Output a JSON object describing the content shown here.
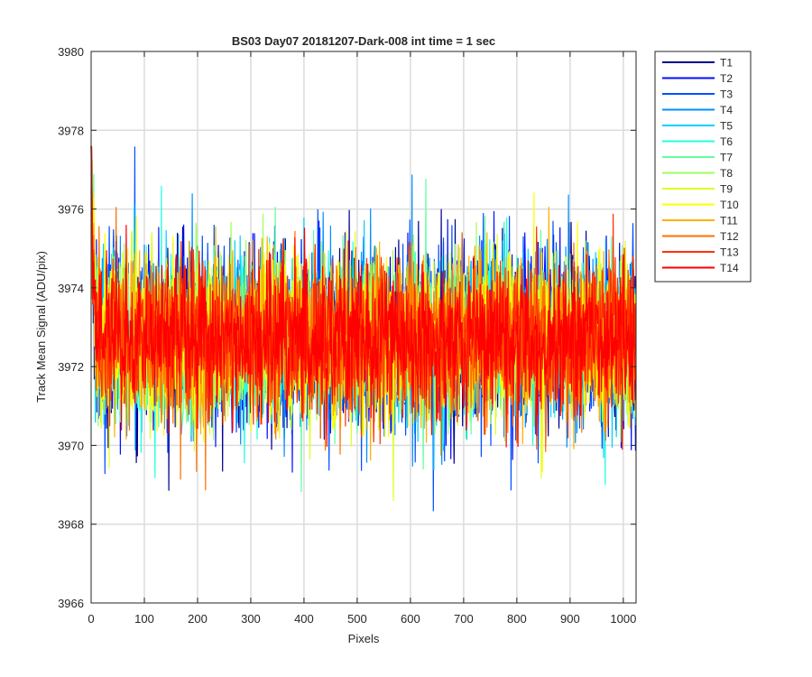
{
  "chart_data": {
    "type": "line",
    "title": "BS03 Day07 20181207-Dark-008 int time = 1 sec",
    "xlabel": "Pixels",
    "ylabel": "Track Mean Signal (ADU/pix)",
    "xlim": [
      0,
      1024
    ],
    "ylim": [
      3966,
      3980
    ],
    "xticks": [
      0,
      100,
      200,
      300,
      400,
      500,
      600,
      700,
      800,
      900,
      1000
    ],
    "yticks": [
      3966,
      3968,
      3970,
      3972,
      3974,
      3976,
      3978,
      3980
    ],
    "grid": true,
    "legend_position": "outside-top-right",
    "num_points": 1024,
    "series_summary": "noisy dark-frame tracks centred near 3972.7 ADU, start near 3977-3978 at pixel 0 and settle within ~10 pixels; typical spread 3970-3976 with occasional spikes",
    "series": [
      {
        "name": "T1",
        "color": "#00008f",
        "start": 3978.6,
        "mean": 3972.7,
        "spread": 1.1
      },
      {
        "name": "T2",
        "color": "#0010ff",
        "start": 3978.3,
        "mean": 3972.7,
        "spread": 1.1
      },
      {
        "name": "T3",
        "color": "#0050ff",
        "start": 3978.0,
        "mean": 3972.7,
        "spread": 1.1
      },
      {
        "name": "T4",
        "color": "#0090ff",
        "start": 3977.8,
        "mean": 3972.7,
        "spread": 1.1
      },
      {
        "name": "T5",
        "color": "#00d0ff",
        "start": 3977.6,
        "mean": 3972.7,
        "spread": 1.0
      },
      {
        "name": "T6",
        "color": "#20ffdf",
        "start": 3977.9,
        "mean": 3972.7,
        "spread": 1.0
      },
      {
        "name": "T7",
        "color": "#60ff9f",
        "start": 3977.5,
        "mean": 3972.7,
        "spread": 1.0
      },
      {
        "name": "T8",
        "color": "#9fff60",
        "start": 3977.7,
        "mean": 3972.7,
        "spread": 1.0
      },
      {
        "name": "T9",
        "color": "#dfff20",
        "start": 3978.1,
        "mean": 3972.7,
        "spread": 1.0
      },
      {
        "name": "T10",
        "color": "#ffff00",
        "start": 3977.9,
        "mean": 3972.7,
        "spread": 1.0
      },
      {
        "name": "T11",
        "color": "#ffb000",
        "start": 3977.6,
        "mean": 3972.7,
        "spread": 1.0
      },
      {
        "name": "T12",
        "color": "#ff7000",
        "start": 3977.4,
        "mean": 3972.7,
        "spread": 1.0
      },
      {
        "name": "T13",
        "color": "#ff3000",
        "start": 3977.2,
        "mean": 3972.7,
        "spread": 0.95
      },
      {
        "name": "T14",
        "color": "#ff0000",
        "start": 3977.0,
        "mean": 3972.7,
        "spread": 0.95
      }
    ]
  }
}
